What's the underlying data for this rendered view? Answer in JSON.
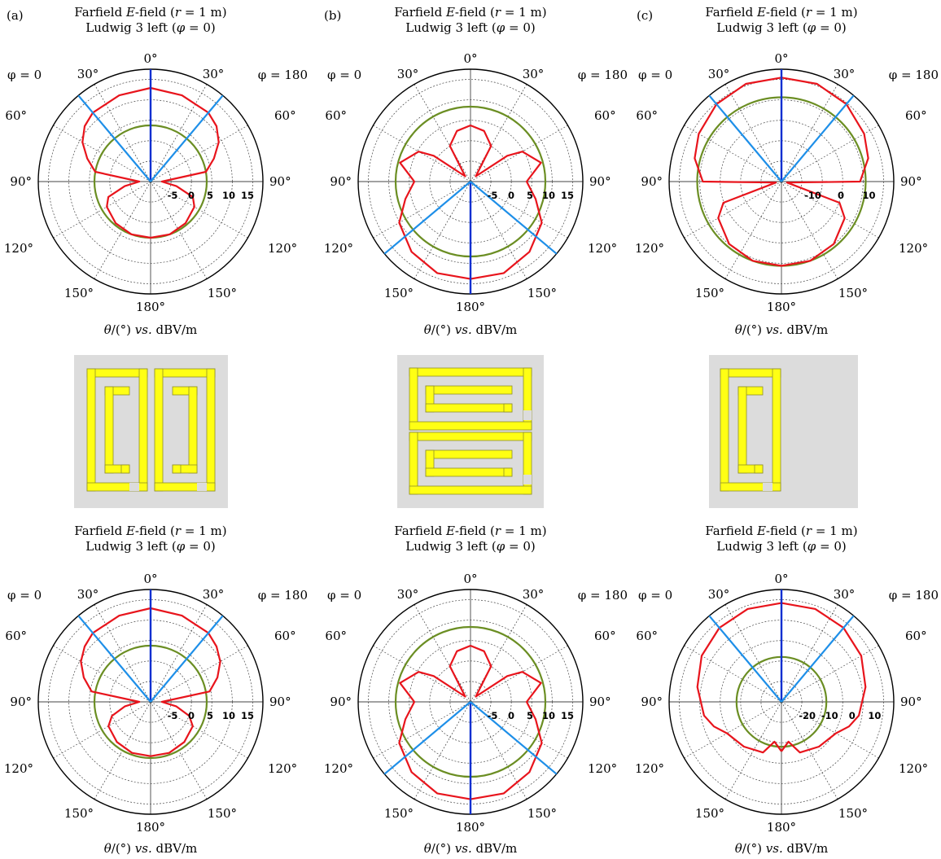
{
  "panel_letters": [
    "(a)",
    "(b)",
    "(c)"
  ],
  "title": {
    "line1_pre": "Farfield ",
    "line1_italic": "E",
    "line1_mid": "-field (",
    "line1_r": "r",
    "line1_post": " = 1 m)",
    "line2_pre": "Ludwig 3 left (",
    "line2_phi": "φ",
    "line2_post": " = 0)"
  },
  "phi_left": "φ = 0",
  "phi_right": "φ = 180",
  "xlabel": {
    "theta": "θ",
    "pre": "/(°) ",
    "vs": "vs.",
    "post": " dBV/m"
  },
  "angle_labels": {
    "top": "0°",
    "upper": "30°",
    "mid_upper": "60°",
    "side": "90°",
    "mid_lower": "120°",
    "lower": "150°",
    "bottom": "180°"
  },
  "colors": {
    "pattern": "#e8141c",
    "reference": "#6b8e23",
    "main_beam": "#0a2fd0",
    "beam_width": "#1e8fe8",
    "grid": "#444444",
    "substrate": "#dcdcdc",
    "metal": "#ffff14",
    "metal_edge": "#8f8f2a"
  },
  "chart_data": [
    {
      "type": "line",
      "polar": true,
      "panel": "a-top",
      "radial_ticks": [
        "-5",
        "0",
        "5",
        "10",
        "15"
      ],
      "rlim": [
        -10,
        20
      ],
      "reference_level": 5,
      "beam_half_angle_deg": 40,
      "series": [
        {
          "theta_deg": [
            0,
            20,
            40,
            50,
            60,
            70,
            80,
            90,
            100,
            110,
            120,
            140,
            160,
            180
          ],
          "r_dbvm": [
            15,
            14.5,
            14,
            13,
            11,
            8,
            5,
            -7,
            -3,
            2,
            3.5,
            4.5,
            5,
            5
          ]
        }
      ]
    },
    {
      "type": "line",
      "polar": true,
      "panel": "b-top",
      "radial_ticks": [
        "-5",
        "0",
        "5",
        "10",
        "15"
      ],
      "rlim": [
        -10,
        20
      ],
      "reference_level": 10,
      "beam_half_angle_deg": 130,
      "series": [
        {
          "theta_deg": [
            0,
            15,
            30,
            45,
            55,
            60,
            75,
            90,
            105,
            120,
            140,
            160,
            180
          ],
          "r_dbvm": [
            5,
            4,
            1,
            -8,
            2,
            6,
            9.5,
            5,
            8,
            12,
            14.5,
            16,
            16
          ]
        }
      ]
    },
    {
      "type": "line",
      "polar": true,
      "panel": "c-top",
      "radial_ticks": [
        "-10",
        "0",
        "10"
      ],
      "rlim": [
        -20,
        20
      ],
      "reference_level": 10,
      "beam_half_angle_deg": 40,
      "series": [
        {
          "theta_deg": [
            0,
            20,
            40,
            60,
            75,
            90,
            100,
            110,
            120,
            140,
            160,
            180
          ],
          "r_dbvm": [
            17,
            17,
            16,
            14,
            12,
            8,
            -18,
            2,
            6,
            9,
            10,
            10
          ]
        }
      ]
    },
    {
      "type": "line",
      "polar": true,
      "panel": "a-bottom",
      "radial_ticks": [
        "-5",
        "0",
        "5",
        "10",
        "15"
      ],
      "rlim": [
        -10,
        20
      ],
      "reference_level": 5,
      "beam_half_angle_deg": 40,
      "series": [
        {
          "theta_deg": [
            0,
            20,
            40,
            50,
            60,
            70,
            80,
            90,
            100,
            110,
            120,
            140,
            160,
            180
          ],
          "r_dbvm": [
            15,
            14.5,
            14,
            13,
            11.5,
            9,
            6,
            -7,
            -3,
            1,
            3,
            4,
            4.5,
            4.5
          ]
        }
      ]
    },
    {
      "type": "line",
      "polar": true,
      "panel": "b-bottom",
      "radial_ticks": [
        "-5",
        "0",
        "5",
        "10",
        "15"
      ],
      "rlim": [
        -10,
        20
      ],
      "reference_level": 10,
      "beam_half_angle_deg": 130,
      "series": [
        {
          "theta_deg": [
            0,
            15,
            30,
            45,
            55,
            60,
            75,
            90,
            105,
            120,
            140,
            160,
            180
          ],
          "r_dbvm": [
            5,
            4,
            1,
            -8,
            2,
            6,
            9.5,
            5,
            8,
            12,
            14.5,
            16,
            16
          ]
        }
      ]
    },
    {
      "type": "line",
      "polar": true,
      "panel": "c-bottom",
      "radial_ticks": [
        "-20",
        "-10",
        "0",
        "10"
      ],
      "rlim": [
        -30,
        20
      ],
      "reference_level": -10,
      "beam_half_angle_deg": 40,
      "series": [
        {
          "theta_deg": [
            0,
            20,
            40,
            60,
            80,
            100,
            110,
            120,
            140,
            160,
            170,
            180
          ],
          "r_dbvm": [
            14,
            14,
            13,
            11,
            8,
            5,
            2,
            -2,
            -4,
            -6,
            -12,
            -8
          ]
        }
      ]
    }
  ]
}
